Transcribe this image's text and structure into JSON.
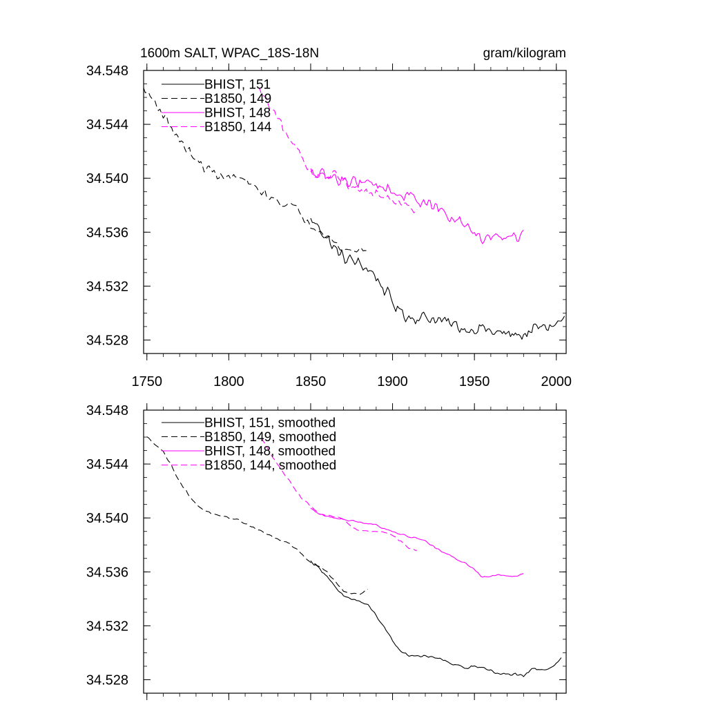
{
  "header": {
    "title": "1600m SALT, WPAC_18S-18N",
    "units": "gram/kilogram"
  },
  "colors": {
    "black_series": "#000000",
    "magenta_series": "#ff00ff"
  },
  "chart_data": [
    {
      "type": "line",
      "xlim": [
        1748,
        2006
      ],
      "ylim": [
        34.527,
        34.548
      ],
      "x_ticks": [
        "1750",
        "1800",
        "1850",
        "1900",
        "1950",
        "2000"
      ],
      "y_ticks": [
        "34.528",
        "34.532",
        "34.536",
        "34.540",
        "34.544",
        "34.548"
      ],
      "grid": false,
      "legend_position": "top-left",
      "series": [
        {
          "name": "BHIST, 151",
          "color": "#000000",
          "dash": "solid",
          "noise": 0.0006,
          "x": [
            1850,
            1855,
            1860,
            1865,
            1870,
            1875,
            1880,
            1885,
            1890,
            1895,
            1900,
            1905,
            1910,
            1915,
            1920,
            1925,
            1930,
            1935,
            1940,
            1945,
            1950,
            1955,
            1960,
            1965,
            1970,
            1975,
            1980,
            1985,
            1990,
            1995,
            2000,
            2005
          ],
          "values": [
            34.5369,
            34.5364,
            34.5356,
            34.5347,
            34.5341,
            34.5339,
            34.5336,
            34.5333,
            34.5327,
            34.5317,
            34.5308,
            34.5301,
            34.5297,
            34.5297,
            34.5297,
            34.5296,
            34.5294,
            34.5292,
            34.529,
            34.5288,
            34.5289,
            34.5289,
            34.5286,
            34.5285,
            34.5284,
            34.5284,
            34.5284,
            34.5287,
            34.5289,
            34.529,
            34.5292,
            34.5296
          ]
        },
        {
          "name": "B1850, 149",
          "color": "#000000",
          "dash": "dashed",
          "noise": 0.0004,
          "x": [
            1748,
            1752,
            1756,
            1760,
            1765,
            1770,
            1775,
            1780,
            1785,
            1790,
            1795,
            1800,
            1805,
            1810,
            1815,
            1820,
            1825,
            1830,
            1835,
            1840,
            1845,
            1850,
            1855,
            1860,
            1865,
            1870,
            1875,
            1880,
            1885
          ],
          "values": [
            34.5466,
            34.5461,
            34.5455,
            34.5447,
            34.5438,
            34.5428,
            34.5421,
            34.5413,
            34.5408,
            34.5405,
            34.5402,
            34.54,
            34.5401,
            34.5398,
            34.5393,
            34.539,
            34.5386,
            34.5383,
            34.5381,
            34.5378,
            34.5372,
            34.5366,
            34.5363,
            34.5358,
            34.5351,
            34.5347,
            34.5346,
            34.5347,
            34.5348
          ]
        },
        {
          "name": "BHIST, 148",
          "color": "#ff00ff",
          "dash": "solid",
          "noise": 0.0006,
          "x": [
            1850,
            1855,
            1860,
            1865,
            1870,
            1875,
            1880,
            1885,
            1890,
            1895,
            1900,
            1905,
            1910,
            1915,
            1920,
            1925,
            1930,
            1935,
            1940,
            1945,
            1950,
            1955,
            1960,
            1965,
            1970,
            1975,
            1980
          ],
          "values": [
            34.5403,
            34.5402,
            34.5401,
            34.54,
            34.5399,
            34.5398,
            34.5398,
            34.5396,
            34.5396,
            34.5393,
            34.539,
            34.5388,
            34.5386,
            34.5385,
            34.5383,
            34.5379,
            34.5375,
            34.537,
            34.5368,
            34.5366,
            34.536,
            34.5356,
            34.5358,
            34.5357,
            34.5357,
            34.5357,
            34.5359
          ]
        },
        {
          "name": "B1850, 144",
          "color": "#ff00ff",
          "dash": "dashed",
          "noise": 0.0005,
          "x": [
            1818,
            1822,
            1826,
            1830,
            1835,
            1840,
            1845,
            1850,
            1855,
            1860,
            1865,
            1870,
            1875,
            1880,
            1885,
            1890,
            1895,
            1900,
            1905,
            1910,
            1915
          ],
          "values": [
            34.5466,
            34.5458,
            34.5451,
            34.5442,
            34.5432,
            34.5424,
            34.5416,
            34.5405,
            34.5403,
            34.5402,
            34.5401,
            34.5399,
            34.5394,
            34.5391,
            34.539,
            34.539,
            34.5388,
            34.5385,
            34.5383,
            34.5381,
            34.5376
          ]
        }
      ]
    },
    {
      "type": "line",
      "xlim": [
        1748,
        2006
      ],
      "ylim": [
        34.527,
        34.548
      ],
      "x_ticks": [],
      "y_ticks": [
        "34.528",
        "34.532",
        "34.536",
        "34.540",
        "34.544",
        "34.548"
      ],
      "grid": false,
      "legend_position": "top-left",
      "series": [
        {
          "name": "BHIST, 151, smoothed",
          "color": "#000000",
          "dash": "solid",
          "noise": 0.00012,
          "x": [
            1850,
            1855,
            1860,
            1865,
            1870,
            1875,
            1880,
            1885,
            1890,
            1895,
            1900,
            1905,
            1910,
            1915,
            1920,
            1925,
            1930,
            1935,
            1940,
            1945,
            1950,
            1955,
            1960,
            1965,
            1970,
            1975,
            1980,
            1985,
            1990,
            1995,
            2000,
            2003
          ],
          "values": [
            34.5368,
            34.5363,
            34.5357,
            34.5348,
            34.5342,
            34.534,
            34.5338,
            34.5335,
            34.5328,
            34.5318,
            34.5309,
            34.5301,
            34.5298,
            34.5298,
            34.5297,
            34.5297,
            34.5295,
            34.5292,
            34.5291,
            34.5288,
            34.529,
            34.5289,
            34.5287,
            34.5284,
            34.5284,
            34.5284,
            34.5282,
            34.5288,
            34.5288,
            34.5288,
            34.5292,
            34.5296
          ]
        },
        {
          "name": "B1850, 149, smoothed",
          "color": "#000000",
          "dash": "dashed",
          "noise": 8e-05,
          "x": [
            1750,
            1755,
            1760,
            1765,
            1770,
            1775,
            1780,
            1785,
            1790,
            1795,
            1800,
            1805,
            1810,
            1815,
            1820,
            1825,
            1830,
            1835,
            1840,
            1845,
            1850,
            1855,
            1860,
            1865,
            1870,
            1875,
            1880,
            1885
          ],
          "values": [
            34.546,
            34.5455,
            34.5449,
            34.5439,
            34.5427,
            34.5418,
            34.541,
            34.5406,
            34.5403,
            34.5401,
            34.54,
            34.5399,
            34.5396,
            34.5393,
            34.539,
            34.5387,
            34.5384,
            34.5382,
            34.5378,
            34.5373,
            34.5367,
            34.5364,
            34.536,
            34.5353,
            34.5346,
            34.5344,
            34.5344,
            34.5347
          ]
        },
        {
          "name": "BHIST, 148, smoothed",
          "color": "#ff00ff",
          "dash": "solid",
          "noise": 8e-05,
          "x": [
            1850,
            1855,
            1860,
            1865,
            1870,
            1875,
            1880,
            1885,
            1890,
            1895,
            1900,
            1905,
            1910,
            1915,
            1920,
            1925,
            1930,
            1935,
            1940,
            1945,
            1950,
            1955,
            1960,
            1965,
            1970,
            1975,
            1980
          ],
          "values": [
            34.5407,
            34.5403,
            34.5401,
            34.54,
            34.5399,
            34.5398,
            34.5397,
            34.5396,
            34.5395,
            34.5392,
            34.539,
            34.5388,
            34.5386,
            34.5385,
            34.5383,
            34.5379,
            34.5375,
            34.5372,
            34.5369,
            34.5366,
            34.5362,
            34.5356,
            34.5357,
            34.5358,
            34.5357,
            34.5357,
            34.5359
          ]
        },
        {
          "name": "B1850, 144, smoothed",
          "color": "#ff00ff",
          "dash": "dashed",
          "noise": 8e-05,
          "x": [
            1820,
            1825,
            1830,
            1835,
            1840,
            1845,
            1850,
            1855,
            1860,
            1865,
            1870,
            1875,
            1880,
            1885,
            1890,
            1895,
            1900,
            1905,
            1910,
            1915
          ],
          "values": [
            34.5459,
            34.5449,
            34.5439,
            34.5431,
            34.5422,
            34.5414,
            34.5409,
            34.5403,
            34.5402,
            34.5401,
            34.5399,
            34.5393,
            34.5391,
            34.539,
            34.539,
            34.539,
            34.5387,
            34.5383,
            34.5378,
            34.5376
          ]
        }
      ]
    }
  ]
}
